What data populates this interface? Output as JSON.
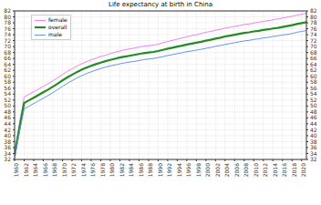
{
  "chart_data": {
    "type": "line",
    "title": "Life expectancy at birth in China",
    "x": [
      1960,
      1961,
      1962,
      1963,
      1964,
      1965,
      1966,
      1967,
      1968,
      1969,
      1970,
      1971,
      1972,
      1973,
      1974,
      1975,
      1976,
      1977,
      1978,
      1979,
      1980,
      1981,
      1982,
      1983,
      1984,
      1985,
      1986,
      1987,
      1988,
      1989,
      1990,
      1991,
      1992,
      1993,
      1994,
      1995,
      1996,
      1997,
      1998,
      1999,
      2000,
      2001,
      2002,
      2003,
      2004,
      2005,
      2006,
      2007,
      2008,
      2009,
      2010,
      2011,
      2012,
      2013,
      2014,
      2015,
      2016,
      2017,
      2018,
      2019,
      2020,
      2021
    ],
    "series": [
      {
        "name": "female",
        "color": "#ee82ee",
        "values": [
          34.5,
          44.0,
          53.0,
          53.9,
          54.8,
          55.7,
          56.6,
          57.5,
          58.5,
          59.5,
          60.6,
          61.6,
          62.5,
          63.4,
          64.2,
          64.9,
          65.5,
          66.1,
          66.6,
          67.1,
          67.6,
          68.1,
          68.5,
          68.9,
          69.2,
          69.5,
          69.8,
          70.1,
          70.3,
          70.5,
          70.8,
          71.3,
          71.7,
          72.1,
          72.5,
          72.9,
          73.3,
          73.7,
          74.0,
          74.4,
          74.8,
          75.1,
          75.5,
          75.8,
          76.2,
          76.5,
          76.8,
          77.1,
          77.4,
          77.6,
          77.9,
          78.2,
          78.5,
          78.7,
          79.0,
          79.3,
          79.6,
          79.9,
          80.2,
          80.6,
          80.9,
          81.2
        ]
      },
      {
        "name": "overall",
        "color": "#228b22",
        "values": [
          33.3,
          42.5,
          51.0,
          51.9,
          52.8,
          53.7,
          54.6,
          55.5,
          56.5,
          57.5,
          58.6,
          59.6,
          60.5,
          61.4,
          62.2,
          62.9,
          63.5,
          64.1,
          64.6,
          65.1,
          65.5,
          65.9,
          66.3,
          66.6,
          66.9,
          67.2,
          67.5,
          67.8,
          68.0,
          68.2,
          68.5,
          68.9,
          69.3,
          69.6,
          70.0,
          70.3,
          70.7,
          71.0,
          71.3,
          71.6,
          72.0,
          72.3,
          72.7,
          73.0,
          73.4,
          73.7,
          74.0,
          74.3,
          74.6,
          74.8,
          75.1,
          75.3,
          75.6,
          75.8,
          76.1,
          76.3,
          76.6,
          76.9,
          77.2,
          77.6,
          77.9,
          78.2
        ]
      },
      {
        "name": "male",
        "color": "#6495ed",
        "values": [
          32.5,
          41.0,
          49.0,
          49.9,
          50.8,
          51.7,
          52.6,
          53.5,
          54.5,
          55.5,
          56.6,
          57.6,
          58.5,
          59.4,
          60.2,
          60.9,
          61.5,
          62.1,
          62.6,
          63.1,
          63.5,
          63.8,
          64.2,
          64.5,
          64.8,
          65.0,
          65.3,
          65.6,
          65.8,
          66.0,
          66.3,
          66.6,
          67.0,
          67.3,
          67.6,
          67.9,
          68.3,
          68.5,
          68.8,
          69.1,
          69.4,
          69.7,
          70.1,
          70.4,
          70.7,
          71.0,
          71.3,
          71.6,
          71.9,
          72.1,
          72.4,
          72.6,
          72.9,
          73.1,
          73.4,
          73.6,
          73.9,
          74.1,
          74.4,
          74.8,
          75.1,
          75.4
        ]
      }
    ],
    "xlim": [
      1960,
      2021
    ],
    "xticks": [
      1960,
      1962,
      1964,
      1966,
      1968,
      1970,
      1972,
      1974,
      1976,
      1978,
      1980,
      1982,
      1984,
      1986,
      1988,
      1990,
      1992,
      1994,
      1996,
      1998,
      2000,
      2002,
      2004,
      2006,
      2008,
      2010,
      2012,
      2014,
      2016,
      2018,
      2020
    ],
    "ylim": [
      32,
      82
    ],
    "yticks": [
      32,
      34,
      36,
      38,
      40,
      42,
      44,
      46,
      48,
      50,
      52,
      54,
      56,
      58,
      60,
      62,
      64,
      66,
      68,
      70,
      72,
      74,
      76,
      78,
      80,
      82
    ],
    "grid": true,
    "legend": "upper left"
  }
}
